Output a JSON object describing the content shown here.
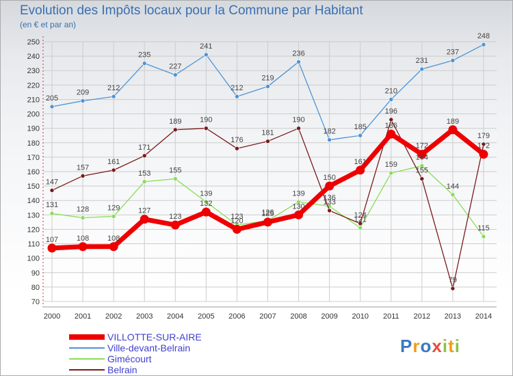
{
  "header": {
    "title": "Evolution des Impôts locaux pour la Commune par Habitant",
    "subtitle": "(en € et par an)"
  },
  "logo": {
    "text": "Proxiti"
  },
  "colors": {
    "axis_text": "#333333",
    "grid": "#cccccc",
    "label_text": "#444444"
  },
  "chart_data": {
    "type": "line",
    "x": [
      2000,
      2001,
      2002,
      2003,
      2004,
      2005,
      2006,
      2007,
      2008,
      2009,
      2010,
      2011,
      2012,
      2013,
      2014
    ],
    "ylim": [
      70,
      250
    ],
    "y_ticks": [
      70,
      80,
      90,
      100,
      110,
      120,
      130,
      140,
      150,
      160,
      170,
      180,
      190,
      200,
      210,
      220,
      230,
      240,
      250
    ],
    "grid": true,
    "legend_position": "bottom-left",
    "series": [
      {
        "name": "VILLOTTE-SUR-AIRE",
        "color": "#ee0000",
        "values": [
          107,
          108,
          108,
          127,
          123,
          132,
          120,
          125,
          130,
          150,
          161,
          186,
          172,
          189,
          172
        ]
      },
      {
        "name": "Ville-devant-Belrain",
        "color": "#4d94d6",
        "values": [
          205,
          209,
          212,
          235,
          227,
          241,
          212,
          219,
          236,
          182,
          185,
          210,
          231,
          237,
          248
        ]
      },
      {
        "name": "Gimécourt",
        "color": "#88dd55",
        "values": [
          131,
          128,
          129,
          153,
          155,
          139,
          123,
          126,
          139,
          136,
          121,
          159,
          164,
          144,
          115
        ]
      },
      {
        "name": "Belrain",
        "color": "#7a1a1a",
        "values": [
          147,
          157,
          161,
          171,
          189,
          190,
          176,
          181,
          190,
          133,
          124,
          196,
          155,
          79,
          179
        ]
      }
    ]
  }
}
